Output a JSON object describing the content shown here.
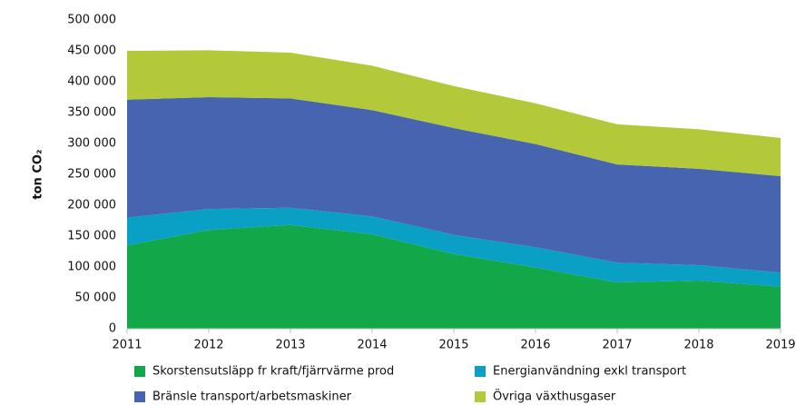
{
  "chart_data": {
    "type": "stacked_area",
    "y_label": "ton CO₂",
    "x": [
      2011,
      2012,
      2013,
      2014,
      2015,
      2016,
      2017,
      2018,
      2019
    ],
    "xlim": [
      2011,
      2019
    ],
    "xticks": [
      2011,
      2012,
      2013,
      2014,
      2015,
      2016,
      2017,
      2018,
      2019
    ],
    "ylim": [
      0,
      500000
    ],
    "yticks": [
      0,
      {
        "value": 50000,
        "label": "50 000"
      },
      {
        "value": 100000,
        "label": "100 000"
      },
      {
        "value": 150000,
        "label": "150 000"
      },
      {
        "value": 200000,
        "label": "200 000"
      },
      {
        "value": 250000,
        "label": "250 000"
      },
      {
        "value": 300000,
        "label": "300 000"
      },
      {
        "value": 350000,
        "label": "350 000"
      },
      {
        "value": 400000,
        "label": "400 000"
      },
      {
        "value": 450000,
        "label": "450 000"
      },
      {
        "value": 500000,
        "label": "500 000"
      }
    ],
    "grid": false,
    "series": [
      {
        "name": "Skorstensutsläpp fr kraft/fjärrvärme prod",
        "color": "#12a84a",
        "values": [
          135000,
          160000,
          168000,
          153000,
          121000,
          99000,
          75000,
          78000,
          68000
        ]
      },
      {
        "name": "Energianvändning exkl transport",
        "color": "#0a9fc4",
        "values": [
          45000,
          34000,
          28000,
          29000,
          31000,
          33000,
          32000,
          25000,
          23000
        ]
      },
      {
        "name": "Bränsle transport/arbetsmaskiner",
        "color": "#4764b0",
        "values": [
          191000,
          181000,
          177000,
          172000,
          173000,
          167000,
          159000,
          156000,
          156000
        ]
      },
      {
        "name": "Övriga växthusgaser",
        "color": "#b3c93a",
        "values": [
          79000,
          76000,
          74000,
          72000,
          68000,
          66000,
          65000,
          64000,
          62000
        ]
      }
    ]
  }
}
